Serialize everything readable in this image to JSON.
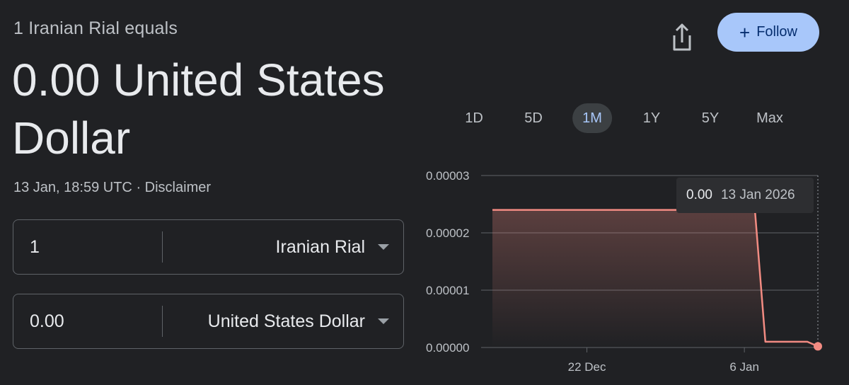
{
  "header": {
    "subtitle": "1 Iranian Rial equals",
    "value_line": "0.00 United States Dollar",
    "timestamp": "13 Jan, 18:59 UTC",
    "separator": "·",
    "disclaimer": "Disclaimer"
  },
  "actions": {
    "share_icon": "share-icon",
    "follow_plus": "+",
    "follow_label": "Follow"
  },
  "converter": {
    "from": {
      "amount": "1",
      "currency": "Iranian Rial"
    },
    "to": {
      "amount": "0.00",
      "currency": "United States Dollar"
    }
  },
  "tabs": [
    {
      "label": "1D",
      "active": false
    },
    {
      "label": "5D",
      "active": false
    },
    {
      "label": "1M",
      "active": true
    },
    {
      "label": "1Y",
      "active": false
    },
    {
      "label": "5Y",
      "active": false
    },
    {
      "label": "Max",
      "active": false
    }
  ],
  "tooltip": {
    "value": "0.00",
    "date": "13 Jan 2026"
  },
  "colors": {
    "line": "#f28b82",
    "accent": "#a8c7fa",
    "grid": "#5f6368"
  },
  "chart_data": {
    "type": "area",
    "x": [
      "13 Dec",
      "14 Dec",
      "15 Dec",
      "16 Dec",
      "17 Dec",
      "18 Dec",
      "19 Dec",
      "20 Dec",
      "21 Dec",
      "22 Dec",
      "23 Dec",
      "24 Dec",
      "25 Dec",
      "26 Dec",
      "27 Dec",
      "28 Dec",
      "29 Dec",
      "30 Dec",
      "31 Dec",
      "1 Jan",
      "2 Jan",
      "3 Jan",
      "4 Jan",
      "5 Jan",
      "6 Jan",
      "7 Jan",
      "8 Jan",
      "9 Jan",
      "10 Jan",
      "11 Jan",
      "12 Jan",
      "13 Jan"
    ],
    "series": [
      {
        "values": [
          2.4e-05,
          2.4e-05,
          2.4e-05,
          2.4e-05,
          2.4e-05,
          2.4e-05,
          2.4e-05,
          2.4e-05,
          2.4e-05,
          2.4e-05,
          2.4e-05,
          2.4e-05,
          2.4e-05,
          2.4e-05,
          2.4e-05,
          2.4e-05,
          2.4e-05,
          2.4e-05,
          2.4e-05,
          2.4e-05,
          2.4e-05,
          2.4e-05,
          2.4e-05,
          2.4e-05,
          2.4e-05,
          2.4e-05,
          1e-06,
          1e-06,
          1e-06,
          1e-06,
          1e-06,
          2e-07
        ]
      }
    ],
    "yticks": [
      "0.00003",
      "0.00002",
      "0.00001",
      "0.00000"
    ],
    "ytick_values": [
      3e-05,
      2e-05,
      1e-05,
      0
    ],
    "xticks": [
      {
        "label": "22 Dec",
        "at": "22 Dec"
      },
      {
        "label": "6 Jan",
        "at": "6 Jan"
      }
    ],
    "ylim": [
      0,
      3e-05
    ],
    "grid": true,
    "highlighted": "13 Jan"
  }
}
